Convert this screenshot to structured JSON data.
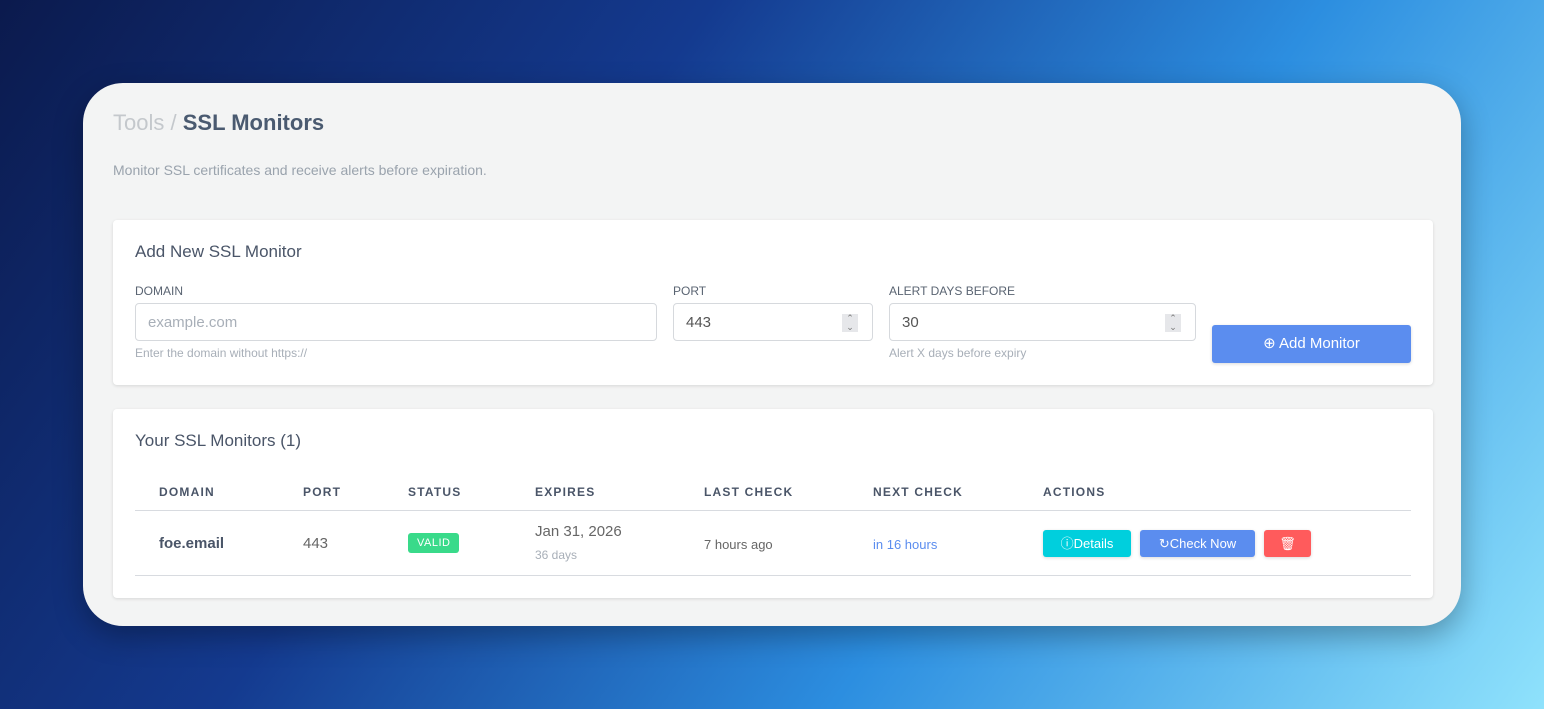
{
  "breadcrumb": {
    "parent": "Tools",
    "separator": "/",
    "current": "SSL Monitors"
  },
  "subtitle": "Monitor SSL certificates and receive alerts before expiration.",
  "form": {
    "title": "Add New SSL Monitor",
    "domain_label": "DOMAIN",
    "domain_placeholder": "example.com",
    "domain_hint": "Enter the domain without https://",
    "port_label": "PORT",
    "port_value": "443",
    "alert_label": "ALERT DAYS BEFORE",
    "alert_value": "30",
    "alert_hint": "Alert X days before expiry",
    "submit_label": "Add Monitor"
  },
  "monitors": {
    "title": "Your SSL Monitors (1)",
    "columns": [
      "DOMAIN",
      "PORT",
      "STATUS",
      "EXPIRES",
      "LAST CHECK",
      "NEXT CHECK",
      "ACTIONS"
    ],
    "rows": [
      {
        "domain": "foe.email",
        "port": "443",
        "status": "VALID",
        "expires": "Jan 31, 2026",
        "expires_sub": "36 days",
        "last_check": "7 hours ago",
        "next_check": "in 16 hours",
        "details_label": "Details",
        "check_label": "Check Now"
      }
    ]
  },
  "colors": {
    "primary": "#5b8def",
    "info": "#00cfdd",
    "danger": "#ff5b5c",
    "success": "#39da8a"
  }
}
